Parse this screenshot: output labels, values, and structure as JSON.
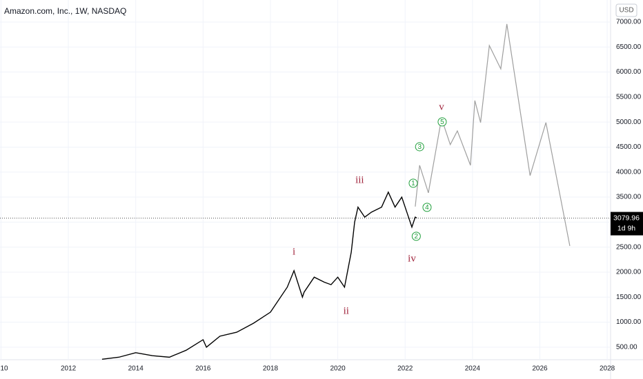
{
  "chart_data": {
    "type": "line",
    "title": "Amazon.com, Inc., 1W, NASDAQ",
    "currency": "USD",
    "last_price": 3079.96,
    "last_price_label": "3079.96",
    "countdown": "1d 9h",
    "xlim": [
      2009.97,
      2028.1
    ],
    "ylim": [
      250,
      7440
    ],
    "xticks": [
      {
        "value": 2010,
        "label": "10"
      },
      2012,
      2014,
      2016,
      2018,
      2020,
      2022,
      2024,
      2026,
      2028
    ],
    "yticks": [
      {
        "value": 500,
        "label": "500.00"
      },
      {
        "value": 1000,
        "label": "1000.00"
      },
      {
        "value": 1500,
        "label": "1500.00"
      },
      {
        "value": 2000,
        "label": "2000.00"
      },
      {
        "value": 2500,
        "label": "2500.00"
      },
      {
        "value": 3000,
        "label": "3000.00"
      },
      {
        "value": 3500,
        "label": "3500.00"
      },
      {
        "value": 4000,
        "label": "4000.00"
      },
      {
        "value": 4500,
        "label": "4500.00"
      },
      {
        "value": 5000,
        "label": "5000.00"
      },
      {
        "value": 5500,
        "label": "5500.00"
      },
      {
        "value": 6000,
        "label": "6000.00"
      },
      {
        "value": 6500,
        "label": "6500.00"
      },
      {
        "value": 7000,
        "label": "7000.00"
      }
    ],
    "grid": true,
    "series": [
      {
        "color": "#000000",
        "x": [
          2013.0,
          2013.5,
          2014.0,
          2014.5,
          2015.0,
          2015.5,
          2016.0,
          2016.1,
          2016.5,
          2017.0,
          2017.5,
          2018.0,
          2018.5,
          2018.7,
          2018.95,
          2019.0,
          2019.3,
          2019.6,
          2019.8,
          2020.0,
          2020.2,
          2020.4,
          2020.5,
          2020.6,
          2020.8,
          2021.0,
          2021.3,
          2021.5,
          2021.7,
          2021.9,
          2022.0,
          2022.2,
          2022.3,
          2022.35
        ],
        "values": [
          260,
          300,
          390,
          330,
          300,
          440,
          650,
          500,
          720,
          800,
          980,
          1200,
          1700,
          2030,
          1500,
          1600,
          1900,
          1800,
          1750,
          1900,
          1700,
          2400,
          3000,
          3300,
          3100,
          3200,
          3300,
          3600,
          3300,
          3500,
          3300,
          2900,
          3100,
          3080
        ]
      },
      {
        "color": "#9e9e9e",
        "x": [
          2022.3,
          2022.43,
          2022.69,
          2023.08,
          2023.34,
          2023.55,
          2023.94,
          2024.07,
          2024.24,
          2024.5,
          2024.84,
          2025.02,
          2025.71,
          2026.18,
          2026.89
        ],
        "values": [
          3310,
          4136,
          3585,
          5073,
          4549,
          4824,
          4136,
          5430,
          4990,
          6530,
          6063,
          6960,
          3930,
          4990,
          2525
        ]
      }
    ],
    "annotations": [
      {
        "label": "i",
        "style": "wave",
        "x": 2018.7,
        "y": 2400
      },
      {
        "label": "ii",
        "style": "wave",
        "x": 2020.25,
        "y": 1216
      },
      {
        "label": "iii",
        "style": "wave",
        "x": 2020.65,
        "y": 3833
      },
      {
        "label": "iv",
        "style": "wave",
        "x": 2022.2,
        "y": 2263
      },
      {
        "label": "v",
        "style": "wave",
        "x": 2023.08,
        "y": 5293
      },
      {
        "label": "1",
        "style": "circle",
        "x": 2022.24,
        "y": 3778
      },
      {
        "label": "2",
        "style": "circle",
        "x": 2022.33,
        "y": 2717
      },
      {
        "label": "3",
        "style": "circle",
        "x": 2022.43,
        "y": 4507
      },
      {
        "label": "4",
        "style": "circle",
        "x": 2022.65,
        "y": 3296
      },
      {
        "label": "5",
        "style": "circle",
        "x": 2023.1,
        "y": 5004
      }
    ]
  }
}
